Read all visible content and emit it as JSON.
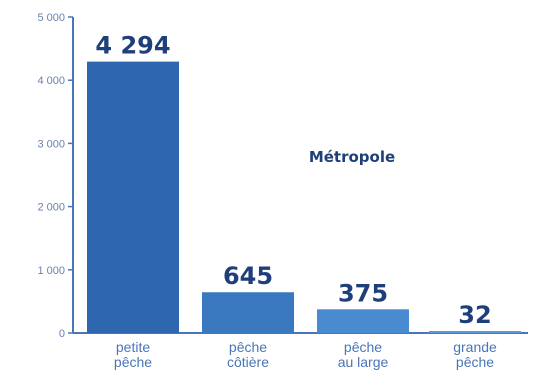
{
  "chart_data": {
    "type": "bar",
    "categories": [
      [
        "petite",
        "pêche"
      ],
      [
        "pêche",
        "côtière"
      ],
      [
        "pêche",
        "au large"
      ],
      [
        "grande",
        "pêche"
      ]
    ],
    "values": [
      4294,
      645,
      375,
      32
    ],
    "value_labels": [
      "4 294",
      "645",
      "375",
      "32"
    ],
    "y_ticks": [
      {
        "value": 0,
        "label": "0"
      },
      {
        "value": 1000,
        "label": "1 000"
      },
      {
        "value": 2000,
        "label": "2 000"
      },
      {
        "value": 3000,
        "label": "3 000"
      },
      {
        "value": 4000,
        "label": "4 000"
      },
      {
        "value": 5000,
        "label": "5 000"
      }
    ],
    "ylim": [
      0,
      5000
    ],
    "annotation": "Métropole",
    "grid": false,
    "colors": {
      "bars": [
        "#2f66b0",
        "#3a78c0",
        "#4a8ad0",
        "#5a9ad8"
      ],
      "axis": "#4a76b8"
    }
  }
}
